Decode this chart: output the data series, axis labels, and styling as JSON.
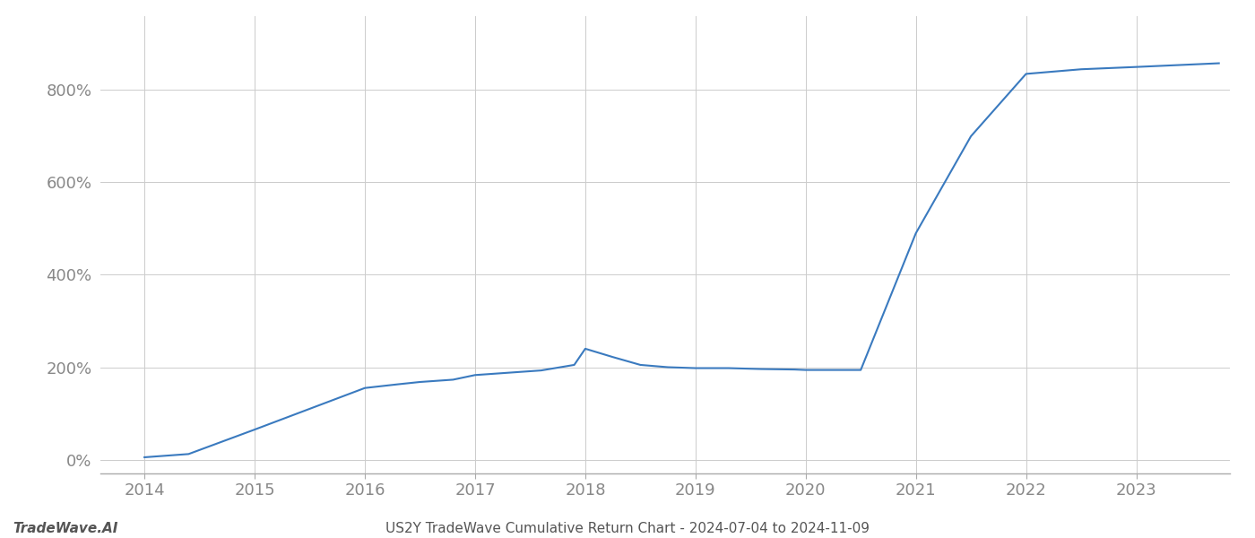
{
  "title": "US2Y TradeWave Cumulative Return Chart - 2024-07-04 to 2024-11-09",
  "watermark": "TradeWave.AI",
  "line_color": "#3a7abf",
  "background_color": "#ffffff",
  "grid_color": "#cccccc",
  "x_values": [
    2014.0,
    2014.4,
    2015.0,
    2015.5,
    2016.0,
    2016.3,
    2016.5,
    2016.8,
    2017.0,
    2017.3,
    2017.6,
    2017.9,
    2018.0,
    2018.25,
    2018.5,
    2018.75,
    2019.0,
    2019.3,
    2019.6,
    2019.9,
    2020.0,
    2020.5,
    2021.0,
    2021.5,
    2022.0,
    2022.5,
    2023.0,
    2023.75
  ],
  "y_values": [
    5,
    12,
    65,
    110,
    155,
    163,
    168,
    173,
    183,
    188,
    193,
    205,
    240,
    222,
    205,
    200,
    198,
    198,
    196,
    195,
    194,
    194,
    490,
    700,
    835,
    845,
    850,
    858
  ],
  "xlim": [
    2013.6,
    2023.85
  ],
  "ylim": [
    -30,
    960
  ],
  "yticks": [
    0,
    200,
    400,
    600,
    800
  ],
  "xticks": [
    2014,
    2015,
    2016,
    2017,
    2018,
    2019,
    2020,
    2021,
    2022,
    2023
  ],
  "line_width": 1.5,
  "figsize": [
    14.0,
    6.0
  ],
  "dpi": 100,
  "axis_label_color": "#888888",
  "title_color": "#555555",
  "watermark_color": "#555555",
  "title_fontsize": 11,
  "tick_fontsize": 13,
  "watermark_fontsize": 11
}
